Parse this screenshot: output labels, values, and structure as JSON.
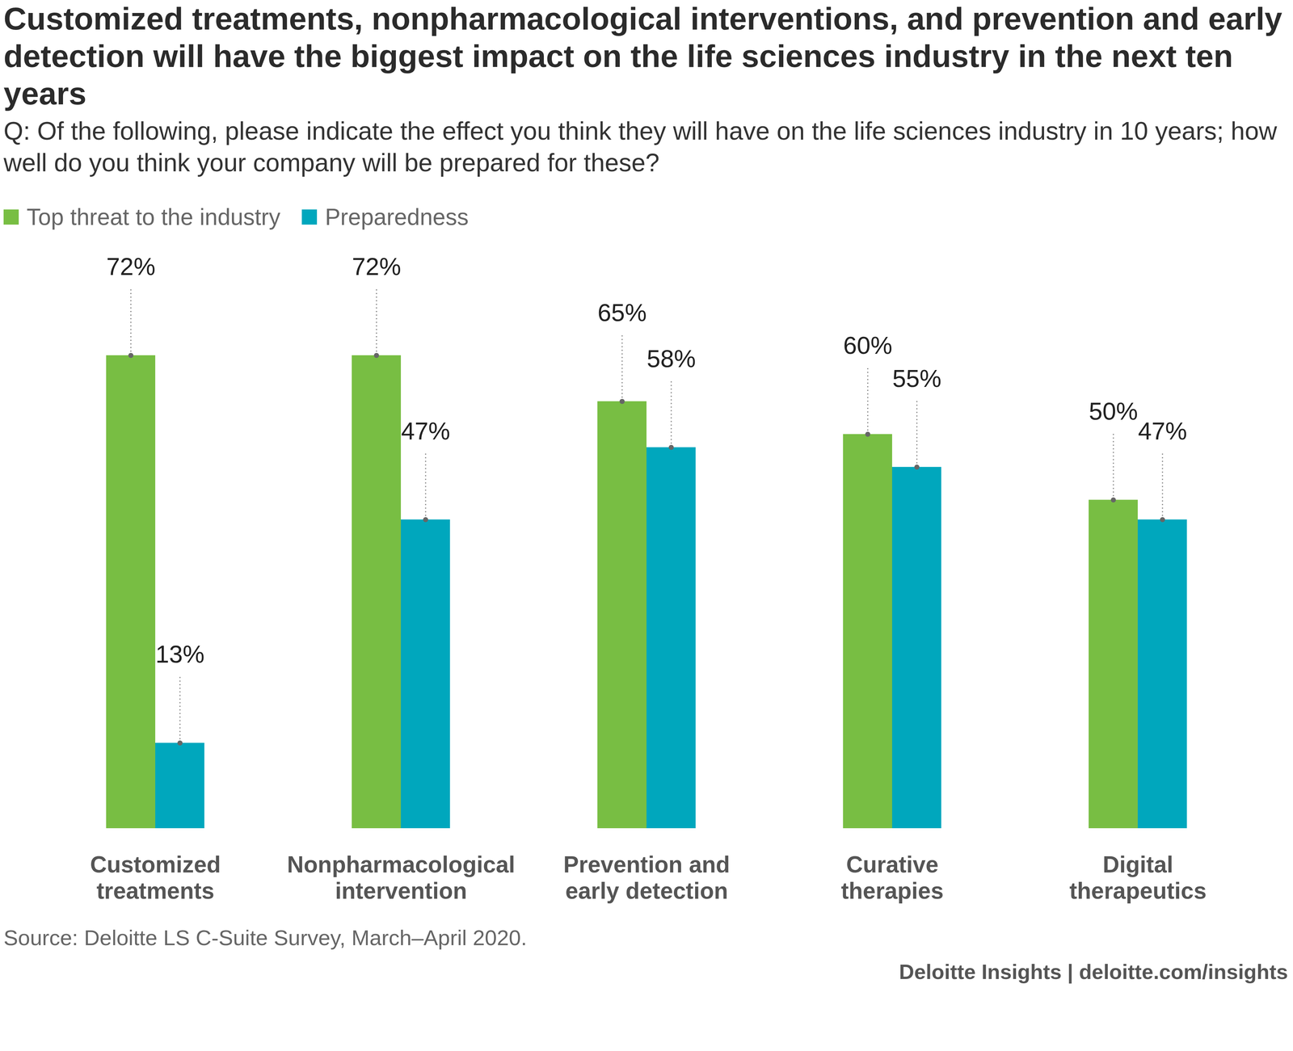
{
  "chart_data": {
    "type": "bar",
    "title": "Customized treatments, nonpharmacological interventions, and prevention and early detection will have the biggest impact on the life sciences industry in the next ten years",
    "subtitle": "Q: Of the following, please indicate the effect you think they will have on the life sciences industry in 10 years; how well do you think your company will be prepared for these?",
    "categories": [
      "Customized treatments",
      "Nonpharmacological intervention",
      "Prevention and early detection",
      "Curative therapies",
      "Digital therapeutics"
    ],
    "series": [
      {
        "name": "Top threat to the industry",
        "color": "#78be43",
        "values": [
          72,
          72,
          65,
          60,
          50
        ],
        "value_labels": [
          "72%",
          "72%",
          "65%",
          "60%",
          "50%"
        ]
      },
      {
        "name": "Preparedness",
        "color": "#00a7bd",
        "values": [
          13,
          47,
          58,
          55,
          47
        ],
        "value_labels": [
          "13%",
          "47%",
          "58%",
          "55%",
          "47%"
        ]
      }
    ],
    "ylim": [
      0,
      72
    ],
    "tick_labels": "x",
    "data_labels": true,
    "legend": "top-left",
    "source": "Source: Deloitte LS C-Suite Survey, March–April 2020.",
    "credit": "Deloitte Insights | deloitte.com/insights"
  }
}
